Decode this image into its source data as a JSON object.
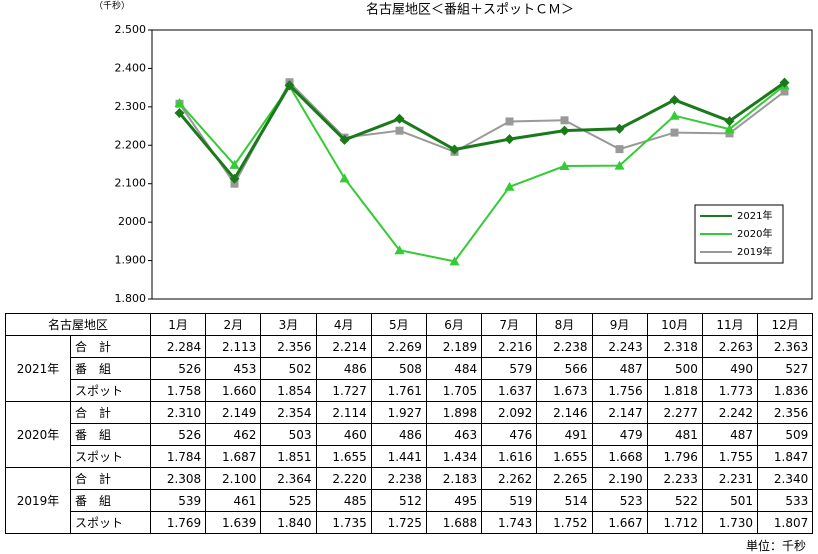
{
  "chart_data": {
    "type": "line",
    "title": "名古屋地区＜番組＋スポットＣＭ＞",
    "y_axis_label": "（千秒）",
    "categories": [
      "1月",
      "2月",
      "3月",
      "4月",
      "5月",
      "6月",
      "7月",
      "8月",
      "9月",
      "10月",
      "11月",
      "12月"
    ],
    "series": [
      {
        "name": "2021年",
        "color": "#1a7a1a",
        "marker": "diamond",
        "values": [
          2284,
          2113,
          2356,
          2214,
          2269,
          2189,
          2216,
          2238,
          2243,
          2318,
          2263,
          2363
        ]
      },
      {
        "name": "2020年",
        "color": "#33cc33",
        "marker": "triangle",
        "values": [
          2310,
          2149,
          2354,
          2114,
          1927,
          1898,
          2092,
          2146,
          2147,
          2277,
          2242,
          2356
        ]
      },
      {
        "name": "2019年",
        "color": "#999999",
        "marker": "square",
        "values": [
          2308,
          2100,
          2364,
          2220,
          2238,
          2183,
          2262,
          2265,
          2190,
          2233,
          2231,
          2340
        ]
      }
    ],
    "ylim": [
      1800,
      2500
    ],
    "yticks": [
      {
        "value": 1800,
        "label": "1.800"
      },
      {
        "value": 1900,
        "label": "1.900"
      },
      {
        "value": 2000,
        "label": "2000"
      },
      {
        "value": 2100,
        "label": "2.100"
      },
      {
        "value": 2200,
        "label": "2.200"
      },
      {
        "value": 2300,
        "label": "2.300"
      },
      {
        "value": 2400,
        "label": "2.400"
      },
      {
        "value": 2500,
        "label": "2.500"
      }
    ],
    "grid": false,
    "legend": "lower-right"
  },
  "table": {
    "header": [
      "名古屋地区",
      "1月",
      "2月",
      "3月",
      "4月",
      "5月",
      "6月",
      "7月",
      "8月",
      "9月",
      "10月",
      "11月",
      "12月"
    ],
    "groups": [
      {
        "year": "2021年",
        "rows": [
          {
            "label": "合　計",
            "cells": [
              "2.284",
              "2.113",
              "2.356",
              "2.214",
              "2.269",
              "2.189",
              "2.216",
              "2.238",
              "2.243",
              "2.318",
              "2.263",
              "2.363"
            ]
          },
          {
            "label": "番　組",
            "cells": [
              "526",
              "453",
              "502",
              "486",
              "508",
              "484",
              "579",
              "566",
              "487",
              "500",
              "490",
              "527"
            ]
          },
          {
            "label": "スポット",
            "cells": [
              "1.758",
              "1.660",
              "1.854",
              "1.727",
              "1.761",
              "1.705",
              "1.637",
              "1.673",
              "1.756",
              "1.818",
              "1.773",
              "1.836"
            ]
          }
        ]
      },
      {
        "year": "2020年",
        "rows": [
          {
            "label": "合　計",
            "cells": [
              "2.310",
              "2.149",
              "2.354",
              "2.114",
              "1.927",
              "1.898",
              "2.092",
              "2.146",
              "2.147",
              "2.277",
              "2.242",
              "2.356"
            ]
          },
          {
            "label": "番　組",
            "cells": [
              "526",
              "462",
              "503",
              "460",
              "486",
              "463",
              "476",
              "491",
              "479",
              "481",
              "487",
              "509"
            ]
          },
          {
            "label": "スポット",
            "cells": [
              "1.784",
              "1.687",
              "1.851",
              "1.655",
              "1.441",
              "1.434",
              "1.616",
              "1.655",
              "1.668",
              "1.796",
              "1.755",
              "1.847"
            ]
          }
        ]
      },
      {
        "year": "2019年",
        "rows": [
          {
            "label": "合　計",
            "cells": [
              "2.308",
              "2.100",
              "2.364",
              "2.220",
              "2.238",
              "2.183",
              "2.262",
              "2.265",
              "2.190",
              "2.233",
              "2.231",
              "2.340"
            ]
          },
          {
            "label": "番　組",
            "cells": [
              "539",
              "461",
              "525",
              "485",
              "512",
              "495",
              "519",
              "514",
              "523",
              "522",
              "501",
              "533"
            ]
          },
          {
            "label": "スポット",
            "cells": [
              "1.769",
              "1.639",
              "1.840",
              "1.735",
              "1.725",
              "1.688",
              "1.743",
              "1.752",
              "1.667",
              "1.712",
              "1.730",
              "1.807"
            ]
          }
        ]
      }
    ],
    "unit": "単位：千秒"
  }
}
